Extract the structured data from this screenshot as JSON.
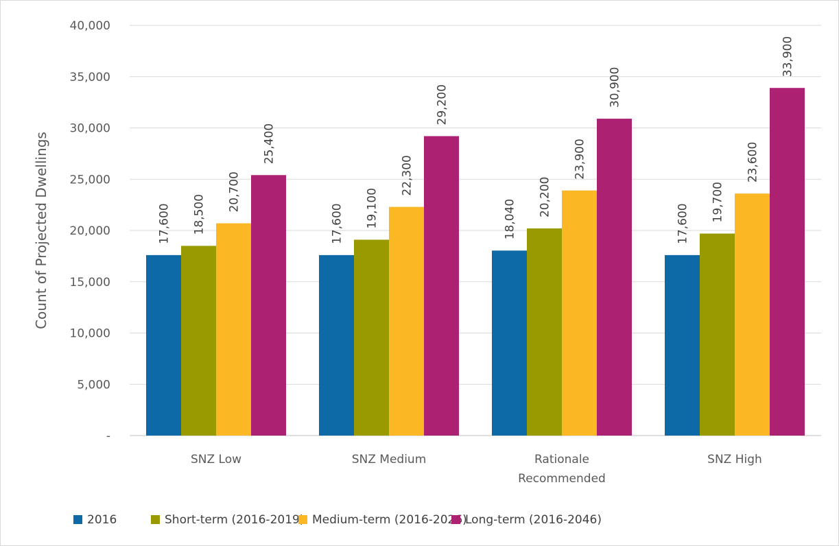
{
  "chart_data": {
    "type": "bar",
    "title": "",
    "xlabel": "",
    "ylabel": "Count of Projected Dwellings",
    "ylim": [
      0,
      40000
    ],
    "yticks": [
      0,
      5000,
      10000,
      15000,
      20000,
      25000,
      30000,
      35000,
      40000
    ],
    "ytick_labels": [
      "-",
      "5,000",
      "10,000",
      "15,000",
      "20,000",
      "25,000",
      "30,000",
      "35,000",
      "40,000"
    ],
    "categories": [
      "SNZ Low",
      "SNZ Medium",
      "Rationale Recommended",
      "SNZ High"
    ],
    "grid": true,
    "legend_position": "bottom",
    "series": [
      {
        "name": "2016",
        "color": "#0e6aa6",
        "values": [
          17600,
          17600,
          18040,
          17600
        ],
        "labels": [
          "17,600",
          "17,600",
          "18,040",
          "17,600"
        ]
      },
      {
        "name": "Short-term (2016-2019)",
        "color": "#999a00",
        "values": [
          18500,
          19100,
          20200,
          19700
        ],
        "labels": [
          "18,500",
          "19,100",
          "20,200",
          "19,700"
        ]
      },
      {
        "name": "Medium-term (2016-2026)",
        "color": "#fcb724",
        "values": [
          20700,
          22300,
          23900,
          23600
        ],
        "labels": [
          "20,700",
          "22,300",
          "23,900",
          "23,600"
        ]
      },
      {
        "name": "Long-term (2016-2046)",
        "color": "#ad2173",
        "values": [
          25400,
          29200,
          30900,
          33900
        ],
        "labels": [
          "25,400",
          "29,200",
          "30,900",
          "33,900"
        ]
      }
    ]
  }
}
